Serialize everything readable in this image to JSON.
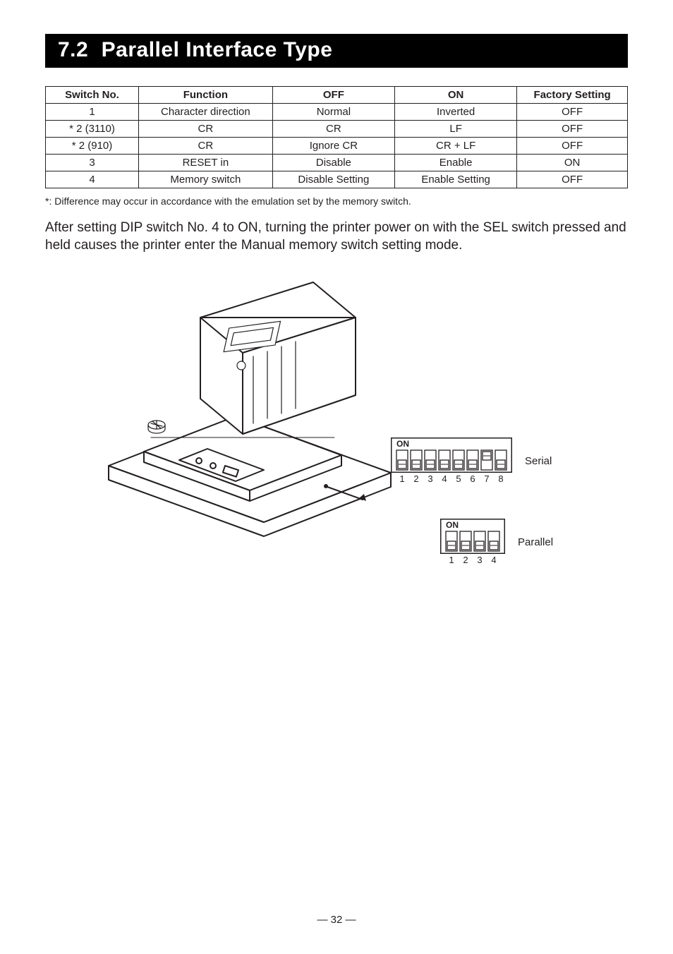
{
  "heading": {
    "index": "7.2",
    "title": "Parallel Interface Type"
  },
  "table": {
    "headers": [
      "Switch No.",
      "Function",
      "OFF",
      "ON",
      "Factory Setting"
    ],
    "rows": [
      [
        "1",
        "Character direction",
        "Normal",
        "Inverted",
        "OFF"
      ],
      [
        "* 2 (3110)",
        "CR",
        "CR",
        "LF",
        "OFF"
      ],
      [
        "* 2 (910)",
        "CR",
        "Ignore CR",
        "CR + LF",
        "OFF"
      ],
      [
        "3",
        "RESET in",
        "Disable",
        "Enable",
        "ON"
      ],
      [
        "4",
        "Memory switch",
        "Disable Setting",
        "Enable Setting",
        "OFF"
      ]
    ],
    "col_widths_pct": [
      16,
      23,
      21,
      21,
      19
    ],
    "border_color": "#231f20",
    "font_size_pt": 11
  },
  "footnote": "*: Difference may occur in accordance with the emulation set by the memory switch.",
  "body_text": "After setting DIP switch No. 4 to ON, turning the printer power on with the SEL switch pressed and held causes the printer enter the Manual memory switch setting mode.",
  "figure": {
    "printer_alt": "Line drawing of a small slip/receipt printer with housing opened, internal DIP-switch location indicated.",
    "serial": {
      "label": "Serial",
      "on_text": "ON",
      "switch_count": 8,
      "numbers": [
        "1",
        "2",
        "3",
        "4",
        "5",
        "6",
        "7",
        "8"
      ],
      "switch_positions": [
        "down",
        "down",
        "down",
        "down",
        "down",
        "down",
        "up",
        "down"
      ]
    },
    "parallel": {
      "label": "Parallel",
      "on_text": "ON",
      "switch_count": 4,
      "numbers": [
        "1",
        "2",
        "3",
        "4"
      ],
      "switch_positions": [
        "down",
        "down",
        "down",
        "down"
      ]
    },
    "stroke_color": "#231f20",
    "fill_color": "#ffffff"
  },
  "page_number": "— 32 —",
  "colors": {
    "text": "#231f20",
    "heading_bg": "#000000",
    "heading_fg": "#ffffff",
    "background": "#ffffff"
  }
}
